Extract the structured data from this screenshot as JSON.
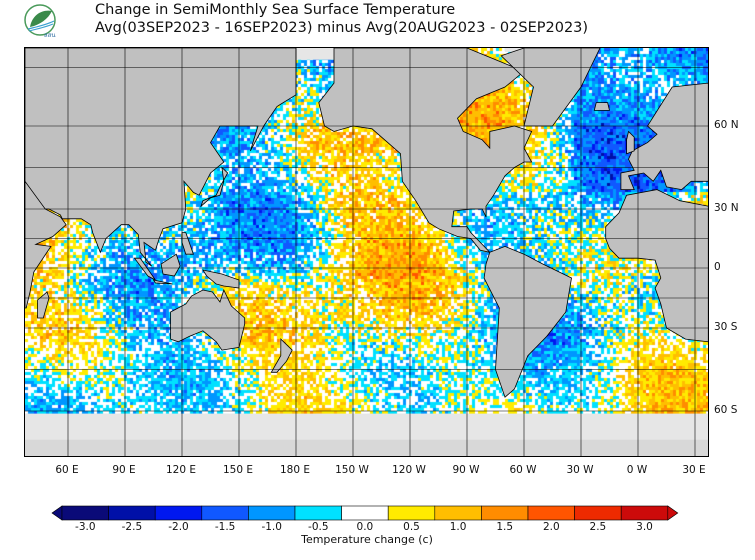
{
  "header": {
    "logo_text": "สสน",
    "title_line1": "Change in SemiMonthly Sea Surface Temperature",
    "title_line2": "Avg(03SEP2023 - 16SEP2023) minus Avg(20AUG2023 - 02SEP2023)"
  },
  "map": {
    "longitude_labels": [
      "60 E",
      "90 E",
      "120 E",
      "150 E",
      "180 E",
      "150 W",
      "120 W",
      "90 W",
      "60 W",
      "30 W",
      "0 W",
      "30 E"
    ],
    "latitude_labels": [
      "60 N",
      "30 N",
      "0",
      "30 S",
      "60 S"
    ],
    "colors": {
      "land": "#c0c0c0",
      "sea_ice": "#e6e6e6",
      "ocean_nodata": "#ffffff",
      "grid": "#000000"
    }
  },
  "colorbar": {
    "title": "Temperature change  (c)",
    "ticks": [
      "-3.0",
      "-2.5",
      "-2.0",
      "-1.5",
      "-1.0",
      "-0.5",
      "0.0",
      "0.5",
      "1.0",
      "1.5",
      "2.0",
      "2.5",
      "3.0"
    ],
    "colors": [
      "#0a0a78",
      "#0010a8",
      "#0018f0",
      "#1058ff",
      "#0096ff",
      "#00e1ff",
      "#ffffff",
      "#ffeb00",
      "#ffbe00",
      "#ff8c00",
      "#ff5500",
      "#ee2a00",
      "#cc0a0a"
    ]
  }
}
